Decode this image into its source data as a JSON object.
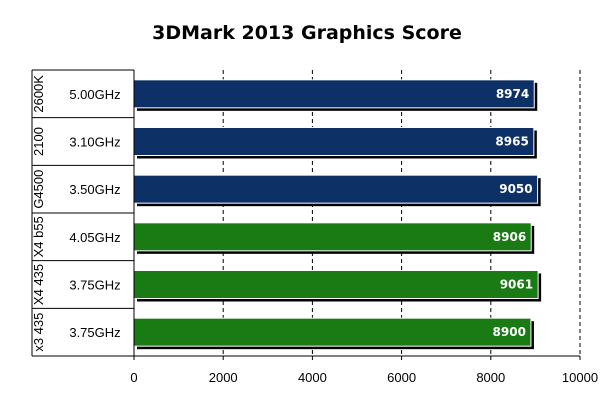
{
  "chart_data": {
    "type": "bar",
    "orientation": "horizontal",
    "title": "3DMark 2013 Graphics Score",
    "xlabel": "",
    "ylabel": "",
    "xlim": [
      0,
      10000
    ],
    "x_ticks": [
      0,
      2000,
      4000,
      6000,
      8000,
      10000
    ],
    "x_tick_labels": [
      "0",
      "2000",
      "4000",
      "6000",
      "8000",
      "10000"
    ],
    "grid": "vertical dashed",
    "legend": "none",
    "categories": [
      {
        "group": "2600K",
        "clock": "5.00GHz"
      },
      {
        "group": "2100",
        "clock": "3.10GHz"
      },
      {
        "group": "G4500",
        "clock": "3.50GHz"
      },
      {
        "group": "X4 b55",
        "clock": "4.05GHz"
      },
      {
        "group": "X4 435",
        "clock": "3.75GHz"
      },
      {
        "group": "x3 435",
        "clock": "3.75GHz"
      }
    ],
    "values": [
      8974,
      8965,
      9050,
      8906,
      9061,
      8900
    ],
    "value_labels": [
      "8974",
      "8965",
      "9050",
      "8906",
      "9061",
      "8900"
    ],
    "bar_colors": [
      "#0d3166",
      "#0d3166",
      "#0d3166",
      "#1a7a14",
      "#1a7a14",
      "#1a7a14"
    ]
  }
}
